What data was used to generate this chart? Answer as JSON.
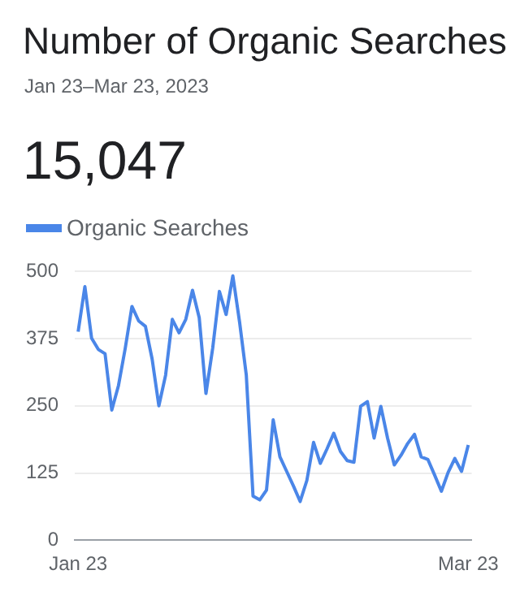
{
  "chart_data": {
    "type": "line",
    "title": "Number of Organic Searches",
    "subtitle": "Jan 23–Mar 23, 2023",
    "annotations": [
      "15,047"
    ],
    "categories": [
      "Jan 23",
      null,
      null,
      null,
      null,
      null,
      null,
      null,
      null,
      null,
      null,
      null,
      null,
      null,
      null,
      null,
      null,
      null,
      null,
      null,
      null,
      null,
      null,
      null,
      null,
      null,
      null,
      null,
      null,
      null,
      null,
      null,
      null,
      null,
      null,
      null,
      null,
      null,
      null,
      null,
      null,
      null,
      null,
      null,
      null,
      null,
      null,
      null,
      null,
      null,
      null,
      null,
      null,
      null,
      null,
      null,
      null,
      null,
      "Mar 23"
    ],
    "series": [
      {
        "name": "Organic Searches",
        "color": "#4a86e8",
        "values": [
          388,
          472,
          376,
          355,
          347,
          242,
          288,
          357,
          435,
          408,
          398,
          337,
          250,
          307,
          411,
          386,
          411,
          465,
          414,
          273,
          357,
          463,
          420,
          492,
          406,
          307,
          82,
          75,
          93,
          224,
          155,
          128,
          101,
          72,
          111,
          182,
          143,
          170,
          199,
          165,
          148,
          145,
          249,
          258,
          190,
          249,
          190,
          140,
          158,
          180,
          197,
          155,
          150,
          121,
          91,
          126,
          152,
          128,
          177
        ]
      }
    ],
    "ylim": [
      0,
      500
    ],
    "yticks": [
      0,
      125,
      250,
      375,
      500
    ],
    "grid": "y",
    "legend": "top left",
    "marker": "none",
    "line_style": "solid"
  }
}
